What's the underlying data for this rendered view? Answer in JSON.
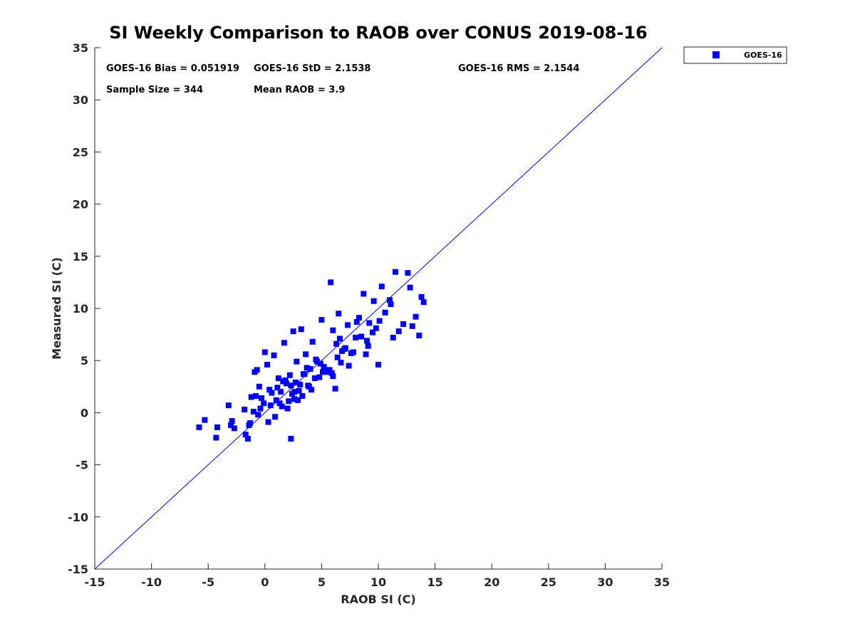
{
  "chart_data": {
    "type": "scatter",
    "title": "SI Weekly Comparison to RAOB over CONUS 2019-08-16",
    "xlabel": "RAOB SI (C)",
    "ylabel": "Measured SI (C)",
    "xlim": [
      -15,
      35
    ],
    "ylim": [
      -15,
      35
    ],
    "xticks": [
      -15,
      -10,
      -5,
      0,
      5,
      10,
      15,
      20,
      25,
      30,
      35
    ],
    "yticks": [
      -15,
      -10,
      -5,
      0,
      5,
      10,
      15,
      20,
      25,
      30,
      35
    ],
    "grid": false,
    "legend_position": "outside-top-right",
    "color": "#0000ff",
    "stats": {
      "bias": "GOES-16 Bias = 0.051919",
      "std": "GOES-16 StD = 2.1538",
      "rms": "GOES-16 RMS = 2.1544",
      "sample_size": "Sample Size = 344",
      "mean_raob": "Mean RAOB = 3.9"
    },
    "reference_line": {
      "name": "1:1 line",
      "x": [
        -15,
        35
      ],
      "y": [
        -15,
        35
      ]
    },
    "series": [
      {
        "name": "GOES-16",
        "marker": "square",
        "x": [
          -5.8,
          -5.3,
          -4.3,
          -4.2,
          -3.2,
          -3.0,
          -2.9,
          -2.7,
          -1.8,
          -1.7,
          -1.5,
          -1.4,
          -1.3,
          -1.2,
          -1.0,
          -0.9,
          -0.8,
          -0.7,
          -0.6,
          -0.5,
          -0.3,
          -0.1,
          0.0,
          0.2,
          0.4,
          0.6,
          0.8,
          1.0,
          1.2,
          1.5,
          1.7,
          1.9,
          2.0,
          2.2,
          2.3,
          2.5,
          2.6,
          2.8,
          3.0,
          3.2,
          3.4,
          3.6,
          3.8,
          4.0,
          4.2,
          4.5,
          4.8,
          5.0,
          5.2,
          5.5,
          5.8,
          6.0,
          6.2,
          6.5,
          6.7,
          7.0,
          7.3,
          7.6,
          8.0,
          8.3,
          8.7,
          9.0,
          9.2,
          9.5,
          9.8,
          10.0,
          10.3,
          10.6,
          11.0,
          11.3,
          11.5,
          11.8,
          12.2,
          12.6,
          13.0,
          13.3,
          13.6,
          13.8,
          14.0,
          0.5,
          1.1,
          1.8,
          2.4,
          3.1,
          3.7,
          4.4,
          5.1,
          5.7,
          6.4,
          7.1,
          7.8,
          8.5,
          9.1,
          2.7,
          3.3,
          1.4,
          4.9,
          6.0,
          6.8,
          0.3,
          -0.4,
          2.1,
          3.9,
          5.4,
          7.4,
          8.9,
          10.1,
          1.6,
          2.9,
          4.1,
          5.9,
          0.9,
          1.3,
          2.6,
          3.5,
          4.6,
          6.3,
          8.1,
          9.6,
          11.1,
          12.8,
          2.3,
          6.6
        ],
        "y": [
          -1.4,
          -0.7,
          -2.4,
          -1.4,
          0.7,
          -1.2,
          -0.8,
          -1.5,
          0.3,
          -2.1,
          -2.5,
          -1.2,
          -1.0,
          1.5,
          0.1,
          3.9,
          1.6,
          4.1,
          -0.2,
          2.5,
          1.4,
          0.9,
          5.8,
          4.6,
          2.2,
          1.9,
          5.5,
          1.2,
          3.3,
          0.6,
          6.7,
          2.8,
          0.4,
          3.6,
          -2.5,
          7.8,
          1.3,
          4.9,
          2.1,
          8.0,
          3.7,
          5.6,
          2.6,
          4.2,
          6.8,
          5.1,
          3.4,
          8.9,
          4.4,
          3.9,
          12.5,
          7.9,
          2.3,
          9.5,
          4.8,
          6.1,
          8.4,
          5.7,
          7.2,
          9.1,
          11.4,
          6.9,
          8.6,
          7.7,
          8.1,
          4.6,
          12.1,
          9.6,
          10.8,
          7.2,
          13.5,
          7.8,
          8.5,
          13.4,
          8.3,
          9.2,
          7.4,
          11.1,
          10.6,
          0.7,
          2.4,
          3.1,
          1.8,
          2.7,
          4.3,
          3.3,
          3.9,
          4.1,
          5.3,
          6.2,
          5.8,
          7.3,
          6.4,
          2.9,
          1.6,
          2.0,
          4.7,
          3.5,
          5.9,
          -0.9,
          0.4,
          1.1,
          2.5,
          4.0,
          4.5,
          5.6,
          8.8,
          3.0,
          1.2,
          2.2,
          3.8,
          -0.4,
          0.9,
          2.0,
          3.7,
          4.9,
          6.6,
          8.7,
          10.7,
          10.4,
          12.0,
          2.6,
          7.1
        ]
      }
    ]
  }
}
